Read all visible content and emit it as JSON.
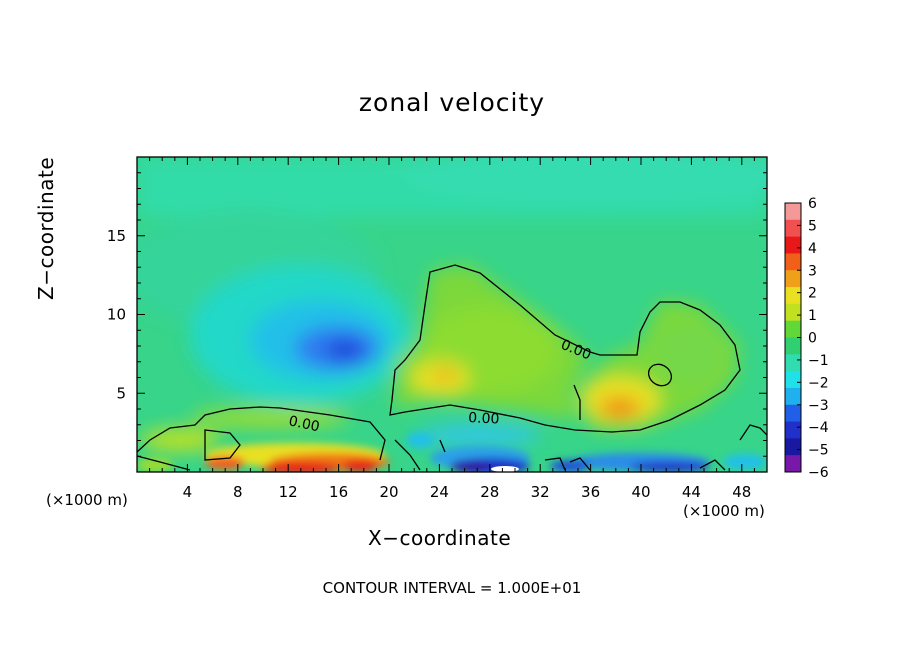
{
  "chart_data": {
    "type": "heatmap",
    "title": "zonal velocity",
    "xlabel": "X−coordinate",
    "ylabel": "Z−coordinate",
    "x_unit": "(×1000 m)",
    "y_unit": "(×1000 m)",
    "x_ticks": [
      "4",
      "8",
      "12",
      "16",
      "20",
      "24",
      "28",
      "32",
      "36",
      "40",
      "44",
      "48"
    ],
    "y_ticks": [
      "5",
      "10",
      "15"
    ],
    "xlim": [
      0,
      50
    ],
    "ylim": [
      0,
      20
    ],
    "colorbar": {
      "ticks": [
        "6",
        "5",
        "4",
        "3",
        "2",
        "1",
        "0",
        "−1",
        "−2",
        "−3",
        "−4",
        "−5",
        "−6"
      ],
      "range": [
        -6,
        6
      ]
    },
    "contour_labels": [
      "0.00",
      "0.00",
      "0.00"
    ],
    "features": [
      {
        "x": 17,
        "z": 7.8,
        "value": -3.2
      },
      {
        "x": 25,
        "z": 6.2,
        "value": 2.4
      },
      {
        "x": 38.5,
        "z": 3.8,
        "value": 3.3
      },
      {
        "x": 16,
        "z": 0.5,
        "value": 5.0
      },
      {
        "x": 28,
        "z": 0.6,
        "value": -4.5
      },
      {
        "x": 43,
        "z": 0.6,
        "value": -4.0
      }
    ],
    "note": "CONTOUR INTERVAL = 1.000E+01"
  }
}
